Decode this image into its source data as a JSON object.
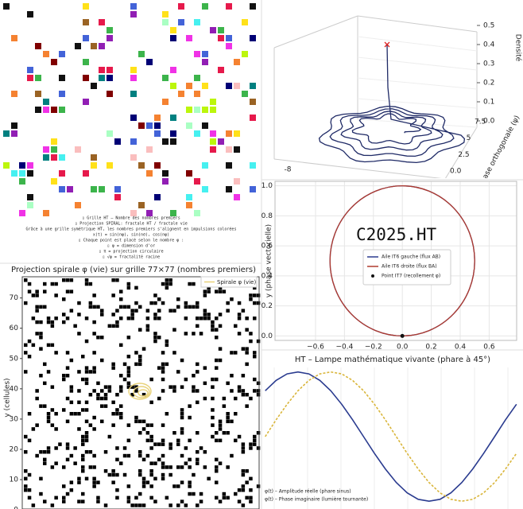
{
  "chart_data": [
    {
      "type": "mosaic",
      "text_lines": [
        "▯ Grille HT – Nombre des nombres premiers",
        "▯ Projection SPIRAL: fractale HT / fractale vie",
        "Grâce à une grille symétrique HT, les nombres premiers s'alignent en impulsions colorées",
        "x(t) = sin(nφ), sin(nσ), cos(nφ)",
        "▯ Chaque point est placé selon le nombre φ :",
        "▯ φ = dimension d'or",
        "▯ π = projection circulaire",
        "▯ √φ = fractalité racine"
      ]
    },
    {
      "type": "line3d",
      "zlabel": "Densité",
      "ylabel": "Phase orthogonale (ψ)",
      "xticks": [
        -8
      ],
      "yticks": [
        {
          "value": 0,
          "label": "0.0"
        },
        2.5,
        5,
        {
          "value": 7.5,
          "label": "7.5"
        }
      ],
      "zticks": [
        {
          "value": 0,
          "label": "0.0"
        },
        0.1,
        0.2,
        0.3,
        0.4,
        0.5
      ]
    },
    {
      "type": "circle",
      "annotation": "C2025.HT",
      "ylabel": "y (phase vectorielle)",
      "xlim": [
        -0.88,
        0.79
      ],
      "ylim": [
        -0.03,
        1.03
      ],
      "xticks": [
        {
          "value": -0.6,
          "label": "−0.6"
        },
        {
          "value": -0.4,
          "label": "−0.4"
        },
        {
          "value": -0.2,
          "label": "−0.2"
        },
        {
          "value": 0,
          "label": "0.0"
        },
        0.2,
        0.4,
        0.6
      ],
      "yticks": [
        {
          "value": 0,
          "label": "0.0"
        },
        0.2,
        0.4,
        0.6,
        0.8,
        {
          "value": 1,
          "label": "1.0"
        }
      ],
      "grid": true,
      "series": [
        {
          "name": "Aile IT6 gauche (flux AB)",
          "color": "#2a3b8f",
          "cx": 0,
          "cy": 0.5,
          "r": 0.5
        },
        {
          "name": "Aile IT6 droite (flux BA)",
          "color": "#b03a2e",
          "cx": 0,
          "cy": 0.5,
          "r": 0.5
        }
      ],
      "point": {
        "name": "Point IT7 (recollement φ)",
        "color": "#111111",
        "x": 0,
        "y": 0
      }
    },
    {
      "type": "cells",
      "title": "Projection spirale φ (vie) sur grille 77×77 (nombres premiers)",
      "ylabel": "y (cellules)",
      "ylim": [
        0.3,
        77
      ],
      "yticks": [
        0,
        10,
        20,
        30,
        40,
        50,
        60,
        70
      ],
      "legend": {
        "name": "Spirale φ (vie)",
        "color": "#e8d27a"
      }
    },
    {
      "type": "line",
      "title": "HT – Lampe mathématique vivante (phare à 45°)",
      "xlim": [
        -49,
        309
      ],
      "ylim": [
        -1.12,
        1.07
      ],
      "x": [
        -45,
        -30,
        -15,
        0,
        15,
        30,
        45,
        60,
        75,
        90,
        105,
        120,
        135,
        150,
        165,
        180,
        195,
        210,
        225,
        240,
        255,
        270,
        285,
        300
      ],
      "series": [
        {
          "name": "φ(t) – Amplitude réelle (phare sinus)",
          "color": "#2a3b8f",
          "dashed": false,
          "values": [
            0.71,
            0.87,
            0.97,
            1,
            0.97,
            0.87,
            0.71,
            0.5,
            0.26,
            0,
            -0.26,
            -0.5,
            -0.71,
            -0.87,
            -0.97,
            -1,
            -0.97,
            -0.87,
            -0.71,
            -0.5,
            -0.26,
            0,
            0.26,
            0.5
          ]
        },
        {
          "name": "φ(t) – Phase imaginaire (lumière tournante)",
          "color": "#d9b53a",
          "dashed": true,
          "values": [
            0,
            0.26,
            0.5,
            0.71,
            0.87,
            0.97,
            1,
            0.97,
            0.87,
            0.71,
            0.5,
            0.26,
            0,
            -0.26,
            -0.5,
            -0.71,
            -0.87,
            -0.97,
            -1,
            -0.97,
            -0.87,
            -0.71,
            -0.5,
            -0.26
          ]
        }
      ]
    }
  ]
}
